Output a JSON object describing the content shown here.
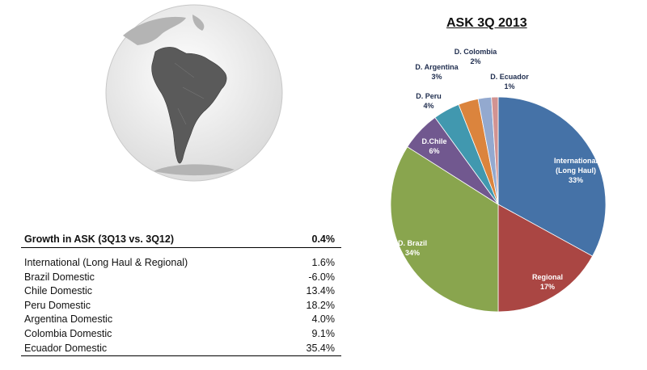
{
  "growth_table": {
    "header_label": "Growth in ASK (3Q13 vs. 3Q12)",
    "header_value": "0.4%",
    "rows": [
      {
        "label": "International (Long Haul & Regional)",
        "value": "1.6%"
      },
      {
        "label": "Brazil Domestic",
        "value": "-6.0%"
      },
      {
        "label": "Chile Domestic",
        "value": "13.4%"
      },
      {
        "label": "Peru Domestic",
        "value": "18.2%"
      },
      {
        "label": "Argentina Domestic",
        "value": "4.0%"
      },
      {
        "label": "Colombia Domestic",
        "value": "9.1%"
      },
      {
        "label": "Ecuador Domestic",
        "value": "35.4%"
      }
    ]
  },
  "chart_data": {
    "type": "pie",
    "title": "ASK 3Q 2013",
    "slices": [
      {
        "label": "International (Long Haul)",
        "pct_label": "33%",
        "value": 33,
        "color": "#4572a7"
      },
      {
        "label": "Regional",
        "pct_label": "17%",
        "value": 17,
        "color": "#aa4643"
      },
      {
        "label": "D. Brazil",
        "pct_label": "34%",
        "value": 34,
        "color": "#89a54e"
      },
      {
        "label": "D.Chile",
        "pct_label": "6%",
        "value": 6,
        "color": "#71588f"
      },
      {
        "label": "D. Peru",
        "pct_label": "4%",
        "value": 4,
        "color": "#4198af"
      },
      {
        "label": "D. Argentina",
        "pct_label": "3%",
        "value": 3,
        "color": "#db843d"
      },
      {
        "label": "D. Colombia",
        "pct_label": "2%",
        "value": 2,
        "color": "#93a9cf"
      },
      {
        "label": "D. Ecuador",
        "pct_label": "1%",
        "value": 1,
        "color": "#d19392"
      }
    ]
  }
}
